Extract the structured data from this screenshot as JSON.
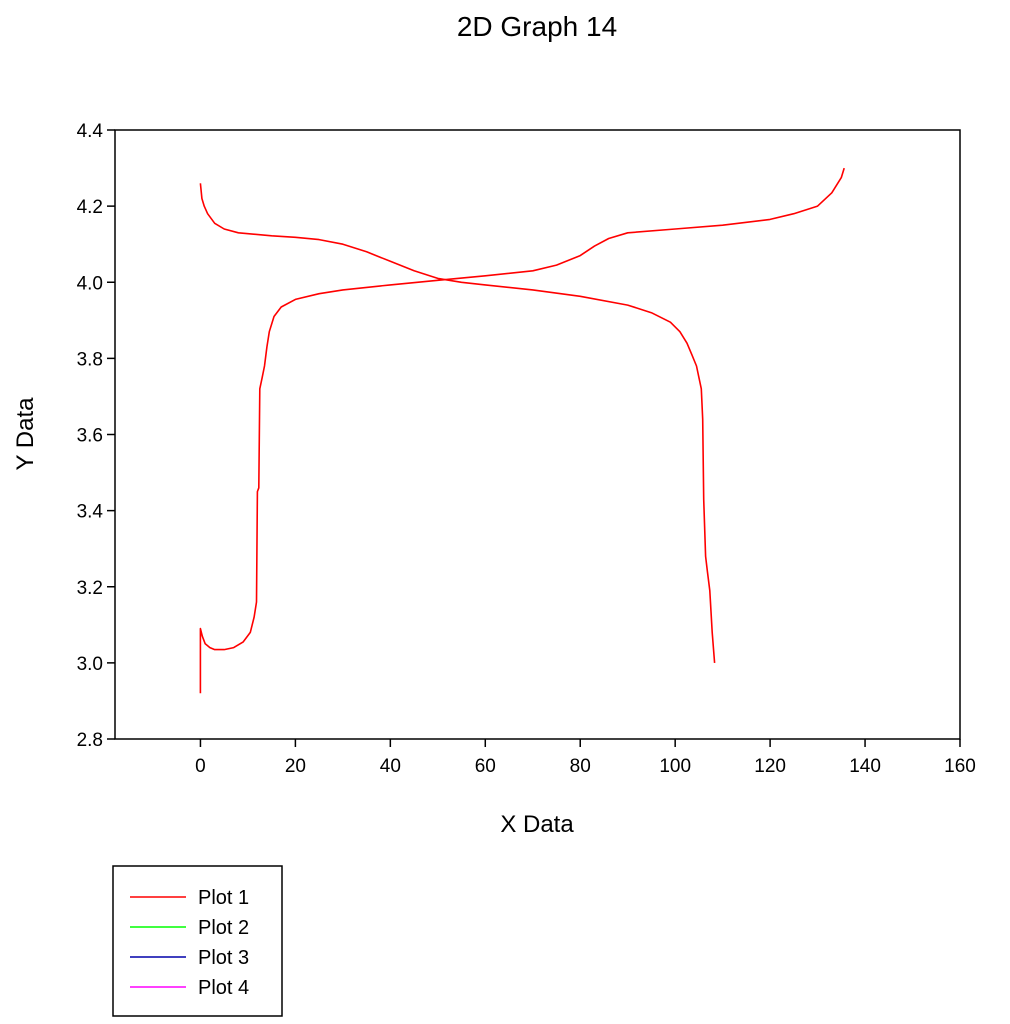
{
  "chart_data": {
    "type": "line",
    "title": "2D Graph 14",
    "xlabel": "X Data",
    "ylabel": "Y Data",
    "xlim": [
      -18,
      160
    ],
    "ylim": [
      2.8,
      4.4
    ],
    "x_ticks": [
      0,
      20,
      40,
      60,
      80,
      100,
      120,
      140,
      160
    ],
    "y_ticks": [
      2.8,
      3.0,
      3.2,
      3.4,
      3.6,
      3.8,
      4.0,
      4.2,
      4.4
    ],
    "x_tick_labels": [
      "0",
      "20",
      "40",
      "60",
      "80",
      "100",
      "120",
      "140",
      "160"
    ],
    "y_tick_labels": [
      "2.8",
      "3.0",
      "3.2",
      "3.4",
      "3.6",
      "3.8",
      "4.0",
      "4.2",
      "4.4"
    ],
    "grid": false,
    "legend_position": "bottom-left, below the plot",
    "legend": [
      {
        "label": "Plot 1",
        "color": "#ff0000"
      },
      {
        "label": "Plot 2",
        "color": "#00ff00"
      },
      {
        "label": "Plot 3",
        "color": "#0000aa"
      },
      {
        "label": "Plot 4",
        "color": "#ff00ff"
      }
    ],
    "series": [
      {
        "name": "Plot 1",
        "color": "#ff0000",
        "segments": [
          [
            [
              0,
              2.92
            ],
            [
              0,
              3.09
            ],
            [
              0.4,
              3.07
            ],
            [
              1,
              3.05
            ],
            [
              2,
              3.04
            ],
            [
              3,
              3.035
            ],
            [
              5,
              3.035
            ],
            [
              7,
              3.04
            ],
            [
              9,
              3.055
            ],
            [
              10.5,
              3.08
            ],
            [
              11.3,
              3.12
            ],
            [
              11.8,
              3.16
            ],
            [
              12,
              3.45
            ],
            [
              12.3,
              3.46
            ],
            [
              12.5,
              3.72
            ],
            [
              13,
              3.75
            ],
            [
              13.5,
              3.78
            ],
            [
              14,
              3.83
            ],
            [
              14.5,
              3.87
            ],
            [
              15.5,
              3.91
            ],
            [
              17,
              3.935
            ],
            [
              20,
              3.955
            ],
            [
              25,
              3.97
            ],
            [
              30,
              3.98
            ],
            [
              40,
              3.993
            ],
            [
              50,
              4.005
            ],
            [
              60,
              4.017
            ],
            [
              70,
              4.03
            ],
            [
              75,
              4.045
            ],
            [
              80,
              4.07
            ],
            [
              83,
              4.095
            ],
            [
              86,
              4.115
            ],
            [
              90,
              4.13
            ],
            [
              100,
              4.14
            ],
            [
              110,
              4.15
            ],
            [
              120,
              4.165
            ],
            [
              125,
              4.18
            ],
            [
              130,
              4.2
            ],
            [
              133,
              4.235
            ],
            [
              135,
              4.275
            ],
            [
              135.6,
              4.3
            ]
          ],
          [
            [
              0,
              4.26
            ],
            [
              0.3,
              4.22
            ],
            [
              0.8,
              4.2
            ],
            [
              1.5,
              4.18
            ],
            [
              3,
              4.155
            ],
            [
              5,
              4.14
            ],
            [
              8,
              4.13
            ],
            [
              15,
              4.122
            ],
            [
              20,
              4.118
            ],
            [
              25,
              4.112
            ],
            [
              30,
              4.1
            ],
            [
              35,
              4.08
            ],
            [
              40,
              4.055
            ],
            [
              45,
              4.03
            ],
            [
              50,
              4.01
            ],
            [
              55,
              4.0
            ],
            [
              60,
              3.993
            ],
            [
              70,
              3.98
            ],
            [
              80,
              3.963
            ],
            [
              90,
              3.94
            ],
            [
              95,
              3.92
            ],
            [
              99,
              3.895
            ],
            [
              101,
              3.87
            ],
            [
              102.5,
              3.84
            ],
            [
              103.5,
              3.81
            ],
            [
              104.5,
              3.78
            ],
            [
              105,
              3.75
            ],
            [
              105.5,
              3.72
            ],
            [
              105.8,
              3.64
            ],
            [
              106,
              3.43
            ],
            [
              106.4,
              3.28
            ],
            [
              106.8,
              3.24
            ],
            [
              107.3,
              3.19
            ],
            [
              107.8,
              3.08
            ],
            [
              108.3,
              3.0
            ]
          ]
        ]
      }
    ]
  }
}
